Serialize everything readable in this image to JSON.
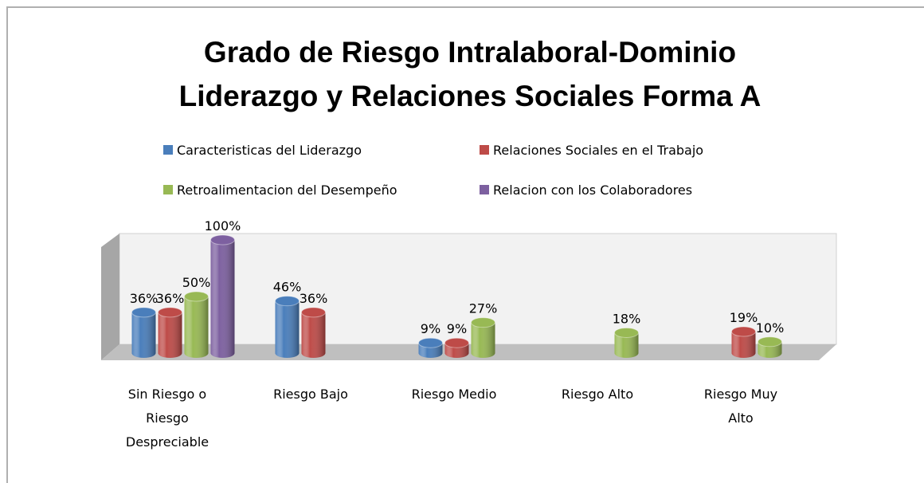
{
  "chart_data": {
    "type": "bar3d",
    "title": "Grado de Riesgo Intralaboral-Dominio Liderazgo y Relaciones Sociales Forma A",
    "categories": [
      "Sin Riesgo o Riesgo Despreciable",
      "Riesgo Bajo",
      "Riesgo Medio",
      "Riesgo Alto",
      "Riesgo Muy Alto"
    ],
    "series": [
      {
        "name": "Caracteristicas del Liderazgo",
        "color": "#4a7ebb",
        "values": [
          36,
          46,
          9,
          null,
          null
        ],
        "value_labels": [
          "36%",
          "46%",
          "9%",
          null,
          null
        ]
      },
      {
        "name": "Relaciones Sociales en el Trabajo",
        "color": "#be4b48",
        "values": [
          36,
          36,
          9,
          null,
          19
        ],
        "value_labels": [
          "36%",
          "36%",
          "9%",
          null,
          "19%"
        ]
      },
      {
        "name": "Retroalimentacion del Desempeño",
        "color": "#98b954",
        "values": [
          50,
          null,
          27,
          18,
          10
        ],
        "value_labels": [
          "50%",
          null,
          "27%",
          "18%",
          "10%"
        ]
      },
      {
        "name": "Relacion con los Colaboradores",
        "color": "#7d60a0",
        "values": [
          100,
          null,
          null,
          null,
          null
        ],
        "value_labels": [
          "100%",
          null,
          null,
          null,
          null
        ]
      }
    ]
  }
}
